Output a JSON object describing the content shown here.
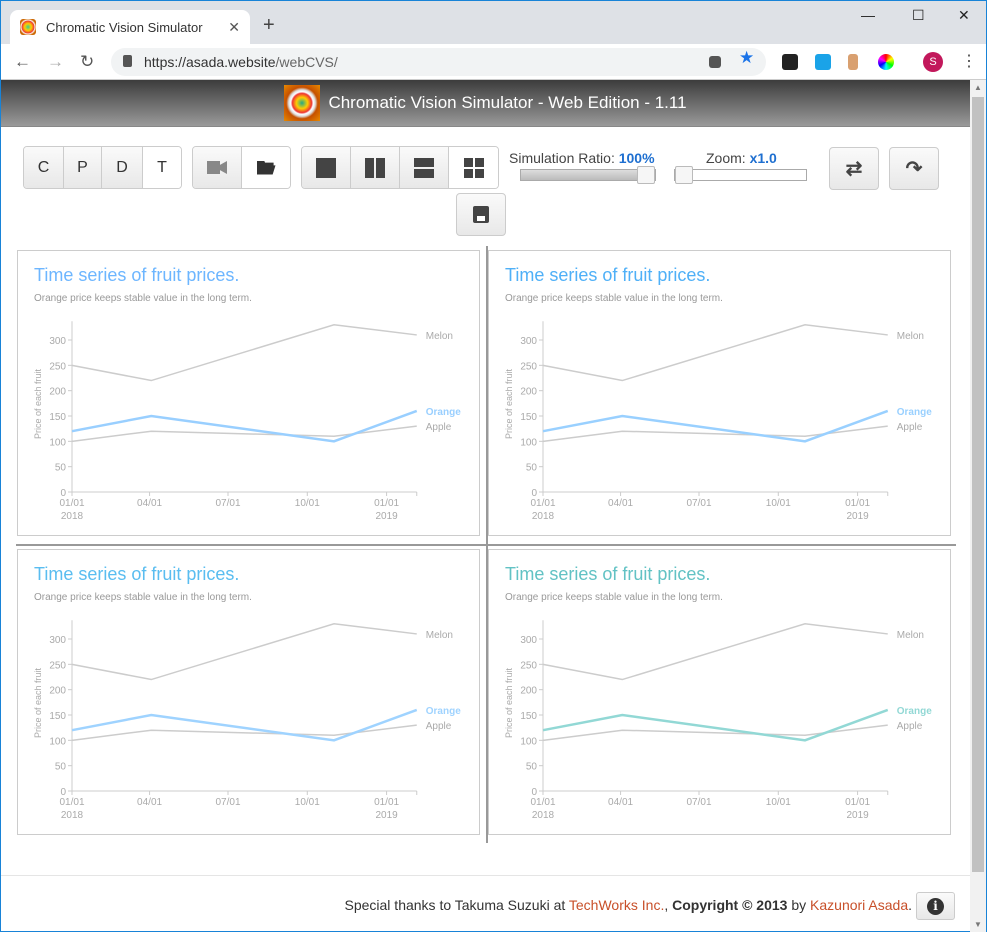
{
  "browser": {
    "tab_title": "Chromatic Vision Simulator",
    "url_host": "https://asada.website",
    "url_path": "/webCVS/",
    "avatar_letter": "S"
  },
  "app": {
    "title": "Chromatic Vision Simulator - Web Edition - 1.11"
  },
  "modes": [
    "C",
    "P",
    "D",
    "T"
  ],
  "active_mode": "T",
  "controls": {
    "sim_ratio_label": "Simulation Ratio:",
    "sim_ratio_value": "100%",
    "sim_ratio_fraction": 1.0,
    "zoom_label": "Zoom:",
    "zoom_value": "x1.0",
    "zoom_fraction": 0.0
  },
  "footer": {
    "pre": "Special thanks to Takuma Suzuki at ",
    "techworks": "TechWorks Inc.",
    "sep": ", ",
    "copyright": "Copyright © 2013",
    "by": " by ",
    "author": "Kazunori Asada",
    "end": ".",
    "info_icon": "i"
  },
  "panel_colors": [
    {
      "title": "#6db6ff",
      "orange": "#99cfff"
    },
    {
      "title": "#4fb0f7",
      "orange": "#99d0ff"
    },
    {
      "title": "#5abdf0",
      "orange": "#9fd3ff"
    },
    {
      "title": "#62c2c4",
      "orange": "#92d8d5"
    }
  ],
  "chart_data": {
    "type": "line",
    "title": "Time series of fruit prices.",
    "subtitle": "Orange price keeps stable value in the long term.",
    "ylabel": "Price of each fruit",
    "ylim": [
      0,
      337
    ],
    "yticks": [
      0,
      50,
      100,
      150,
      200,
      250,
      300
    ],
    "xticks": [
      {
        "day": 0,
        "label": "01/01",
        "sub": "2018"
      },
      {
        "day": 90,
        "label": "04/01",
        "sub": ""
      },
      {
        "day": 181,
        "label": "07/01",
        "sub": ""
      },
      {
        "day": 273,
        "label": "10/01",
        "sub": ""
      },
      {
        "day": 365,
        "label": "01/01",
        "sub": "2019"
      }
    ],
    "x_days": [
      0,
      92,
      304,
      400
    ],
    "x_dates": [
      "2018-01-01",
      "2018-04-03",
      "2018-11-01",
      "2019-02-05"
    ],
    "series": [
      {
        "name": "Melon",
        "values": [
          250,
          220,
          330,
          310
        ],
        "highlight": false
      },
      {
        "name": "Orange",
        "values": [
          120,
          150,
          100,
          160
        ],
        "highlight": true
      },
      {
        "name": "Apple",
        "values": [
          100,
          120,
          110,
          130
        ],
        "highlight": false
      }
    ]
  }
}
